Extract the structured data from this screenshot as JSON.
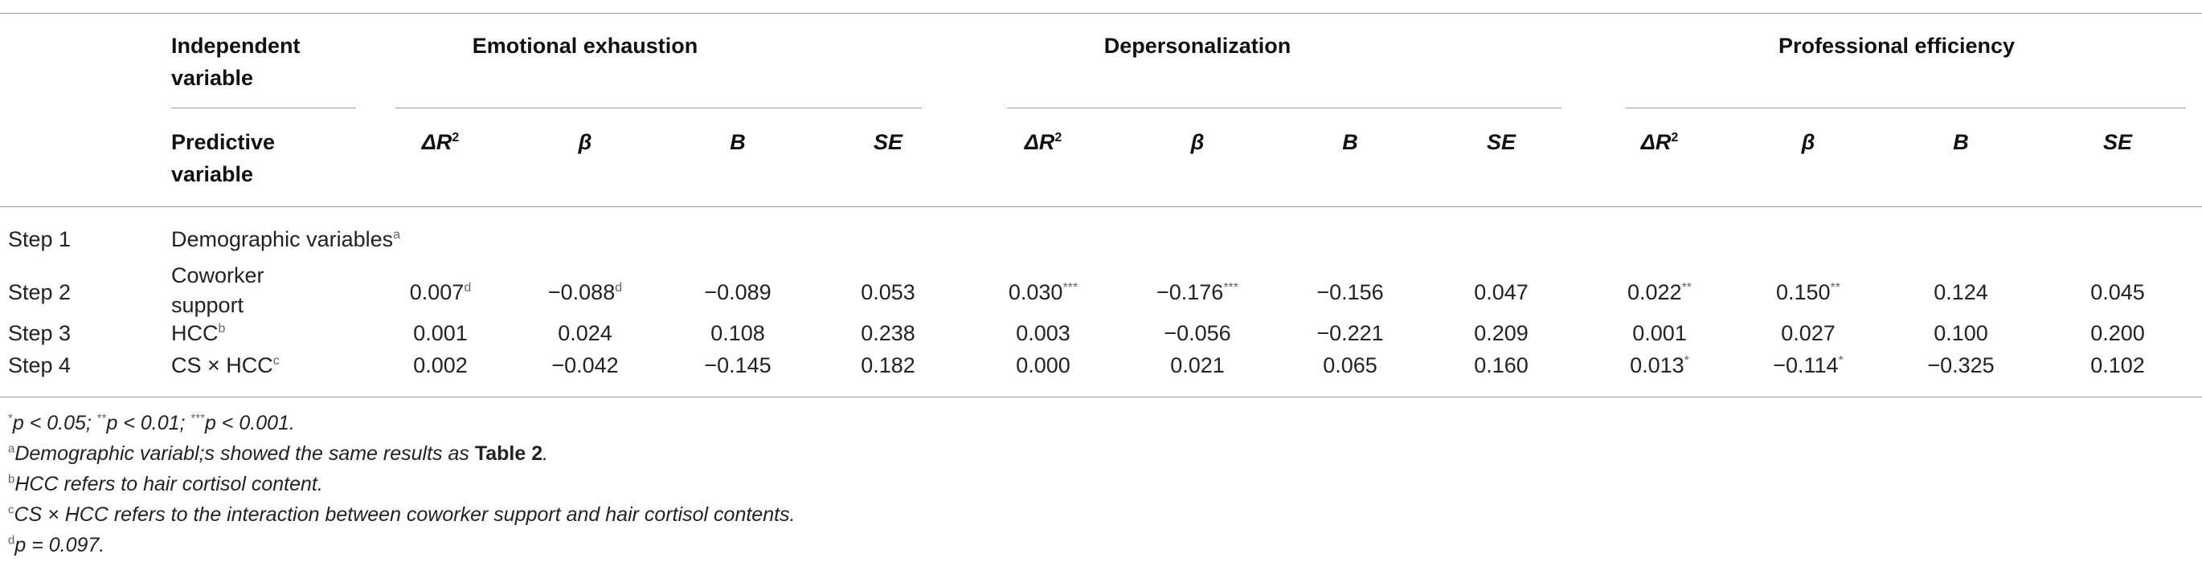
{
  "header": {
    "independent_variable": [
      "Independent",
      "variable"
    ],
    "predictive_variable": [
      "Predictive",
      "variable"
    ],
    "groups": [
      "Emotional exhaustion",
      "Depersonalization",
      "Professional efficiency"
    ],
    "col_delta_r": "ΔR",
    "col_delta_r_sup": "2",
    "col_beta": "β",
    "col_b": "B",
    "col_se": "SE"
  },
  "rows": [
    {
      "step": "Step 1",
      "pred": [
        "Demographic variables"
      ],
      "pred_sup": "a",
      "cells": []
    },
    {
      "step": "Step 2",
      "pred": [
        "Coworker",
        "support"
      ],
      "pred_sup": "",
      "cells": [
        {
          "v": "0.007",
          "s": "d"
        },
        {
          "v": "−0.088",
          "s": "d"
        },
        {
          "v": "−0.089",
          "s": ""
        },
        {
          "v": "0.053",
          "s": ""
        },
        {
          "v": "0.030",
          "s": "***"
        },
        {
          "v": "−0.176",
          "s": "***"
        },
        {
          "v": "−0.156",
          "s": ""
        },
        {
          "v": "0.047",
          "s": ""
        },
        {
          "v": "0.022",
          "s": "**"
        },
        {
          "v": "0.150",
          "s": "**"
        },
        {
          "v": "0.124",
          "s": ""
        },
        {
          "v": "0.045",
          "s": ""
        }
      ]
    },
    {
      "step": "Step 3",
      "pred": [
        "HCC"
      ],
      "pred_sup": "b",
      "cells": [
        {
          "v": "0.001",
          "s": ""
        },
        {
          "v": "0.024",
          "s": ""
        },
        {
          "v": "0.108",
          "s": ""
        },
        {
          "v": "0.238",
          "s": ""
        },
        {
          "v": "0.003",
          "s": ""
        },
        {
          "v": "−0.056",
          "s": ""
        },
        {
          "v": "−0.221",
          "s": ""
        },
        {
          "v": "0.209",
          "s": ""
        },
        {
          "v": "0.001",
          "s": ""
        },
        {
          "v": "0.027",
          "s": ""
        },
        {
          "v": "0.100",
          "s": ""
        },
        {
          "v": "0.200",
          "s": ""
        }
      ]
    },
    {
      "step": "Step 4",
      "pred": [
        "CS × HCC"
      ],
      "pred_sup": "c",
      "cells": [
        {
          "v": "0.002",
          "s": ""
        },
        {
          "v": "−0.042",
          "s": ""
        },
        {
          "v": "−0.145",
          "s": ""
        },
        {
          "v": "0.182",
          "s": ""
        },
        {
          "v": "0.000",
          "s": ""
        },
        {
          "v": "0.021",
          "s": ""
        },
        {
          "v": "0.065",
          "s": ""
        },
        {
          "v": "0.160",
          "s": ""
        },
        {
          "v": "0.013",
          "s": "*"
        },
        {
          "v": "−0.114",
          "s": "*"
        },
        {
          "v": "−0.325",
          "s": ""
        },
        {
          "v": "0.102",
          "s": ""
        }
      ]
    }
  ],
  "notes": {
    "n1_sup1": "*",
    "n1_p1": "p < 0.05; ",
    "n1_sup2": "**",
    "n1_p2": "p < 0.01; ",
    "n1_sup3": "***",
    "n1_p3": "p < 0.001.",
    "n2_sup": "a",
    "n2_text": "Demographic variabl;s showed the same results as ",
    "n2_bold": "Table 2",
    "n2_end": ".",
    "n3_sup": "b",
    "n3_text": "HCC refers to hair cortisol content.",
    "n4_sup": "c",
    "n4_text": "CS × HCC refers to the interaction between coworker support and hair cortisol contents.",
    "n5_sup": "d",
    "n5_text": "p = 0.097."
  }
}
